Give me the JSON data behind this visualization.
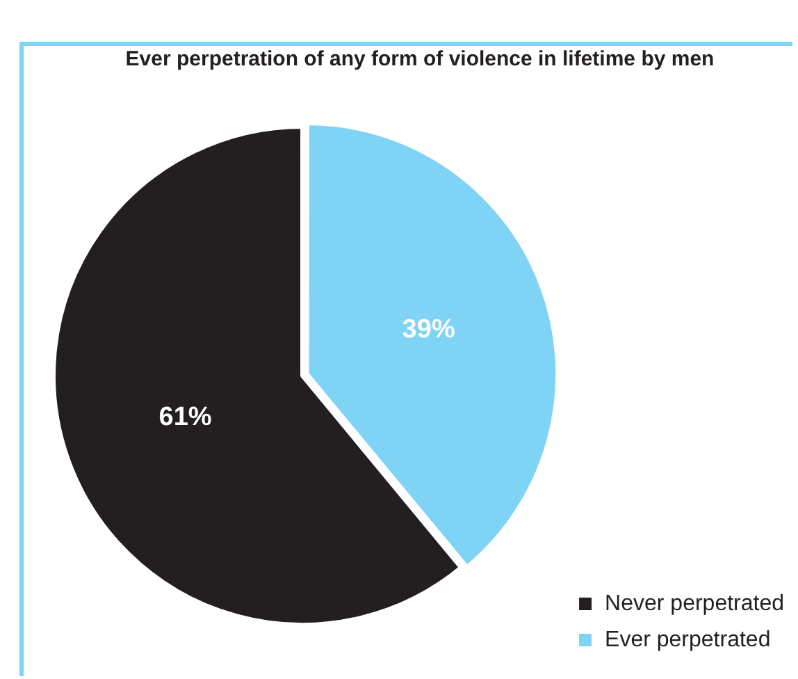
{
  "chart_data": {
    "type": "pie",
    "title": "Ever perpetration of any form of violence in lifetime by men",
    "categories": [
      "Never perpetrated",
      "Ever perpetrated"
    ],
    "values": [
      61,
      39
    ],
    "colors": [
      "#231f20",
      "#7fd3f4"
    ],
    "value_labels": [
      "61%",
      "39%"
    ],
    "legend": "bottom right"
  }
}
